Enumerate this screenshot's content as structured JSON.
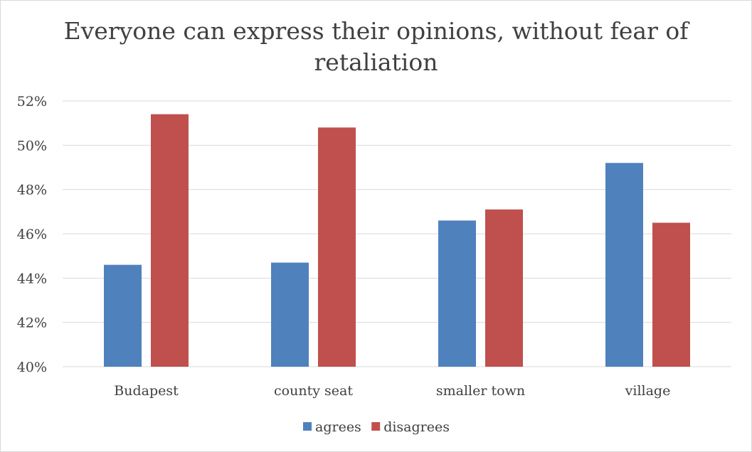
{
  "chart_data": {
    "type": "bar",
    "title": "Everyone can express their opinions, without fear of retaliation",
    "title_lines": [
      "Everyone can express their opinions, without fear of",
      "retaliation"
    ],
    "categories": [
      "Budapest",
      "county seat",
      "smaller town",
      "village"
    ],
    "series": [
      {
        "name": "agrees",
        "color": "#4f81bd",
        "values": [
          44.6,
          44.7,
          46.6,
          49.2
        ]
      },
      {
        "name": "disagrees",
        "color": "#c0504d",
        "values": [
          51.4,
          50.8,
          47.1,
          46.5
        ]
      }
    ],
    "ylim": [
      40,
      52
    ],
    "yticks": [
      "40%",
      "42%",
      "44%",
      "46%",
      "48%",
      "50%",
      "52%"
    ],
    "ytick_values": [
      40,
      42,
      44,
      46,
      48,
      50,
      52
    ],
    "xlabel": "",
    "ylabel": "",
    "grid": true,
    "legend_position": "bottom"
  }
}
